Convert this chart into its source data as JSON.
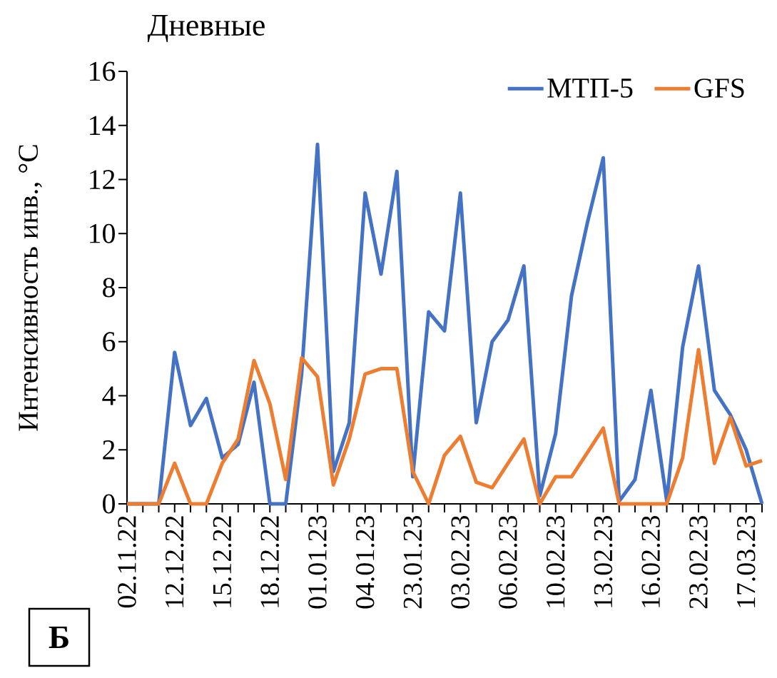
{
  "chart_data": {
    "type": "line",
    "title": "Дневные",
    "ylabel": "Интенсивность инв., °C",
    "annotations": [
      "Б"
    ],
    "categories": [
      "02.11.22",
      null,
      null,
      "12.12.22",
      null,
      null,
      "15.12.22",
      null,
      null,
      "18.12.22",
      null,
      null,
      "01.01.23",
      null,
      null,
      "04.01.23",
      null,
      null,
      "23.01.23",
      null,
      null,
      "03.02.23",
      null,
      null,
      "06.02.23",
      null,
      null,
      "10.02.23",
      null,
      null,
      "13.02.23",
      null,
      null,
      "16.02.23",
      null,
      null,
      "23.02.23",
      null,
      null,
      "17.03.23",
      null
    ],
    "series": [
      {
        "name": "МТП-5",
        "color": "#4472c4",
        "values": [
          0,
          0,
          0,
          5.6,
          2.9,
          3.9,
          1.7,
          2.2,
          4.5,
          0,
          0,
          4.8,
          13.3,
          1.2,
          3.0,
          11.5,
          8.5,
          12.3,
          1.0,
          7.1,
          6.4,
          11.5,
          3.0,
          6.0,
          6.8,
          8.8,
          0.3,
          2.6,
          7.7,
          10.4,
          12.8,
          0.1,
          0.9,
          4.2,
          0.1,
          5.8,
          8.8,
          4.2,
          3.3,
          2.0,
          0
        ]
      },
      {
        "name": "GFS",
        "color": "#ed7d31",
        "values": [
          0,
          0,
          0,
          1.5,
          0,
          0,
          1.5,
          2.4,
          5.3,
          3.7,
          0.9,
          5.4,
          4.7,
          0.7,
          2.4,
          4.8,
          5.0,
          5.0,
          1.2,
          0,
          1.8,
          2.5,
          0.8,
          0.6,
          1.5,
          2.4,
          0,
          1.0,
          1.0,
          1.9,
          2.8,
          0,
          0,
          0,
          0,
          1.7,
          5.7,
          1.5,
          3.2,
          1.4,
          1.6
        ]
      }
    ],
    "ylim": [
      0,
      16
    ],
    "yticks": [
      0,
      2,
      4,
      6,
      8,
      10,
      12,
      14,
      16
    ],
    "legend": "top right",
    "marker": "none",
    "line_style": "solid"
  }
}
